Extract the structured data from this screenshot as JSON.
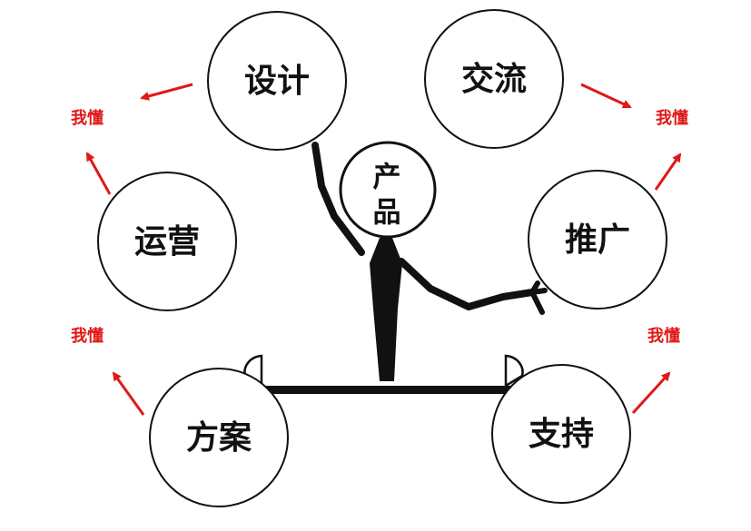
{
  "center": {
    "line1": "产",
    "line2": "品"
  },
  "circles": {
    "design": "设计",
    "communication": "交流",
    "operations": "运营",
    "promotion": "推广",
    "proposal": "方案",
    "support": "支持"
  },
  "understand": {
    "top_left": "我懂",
    "top_right": "我懂",
    "mid_left": "我懂",
    "mid_right": "我懂"
  },
  "colors": {
    "stroke": "#111111",
    "arrow": "#e01818",
    "label": "#e01818",
    "background": "#ffffff"
  }
}
